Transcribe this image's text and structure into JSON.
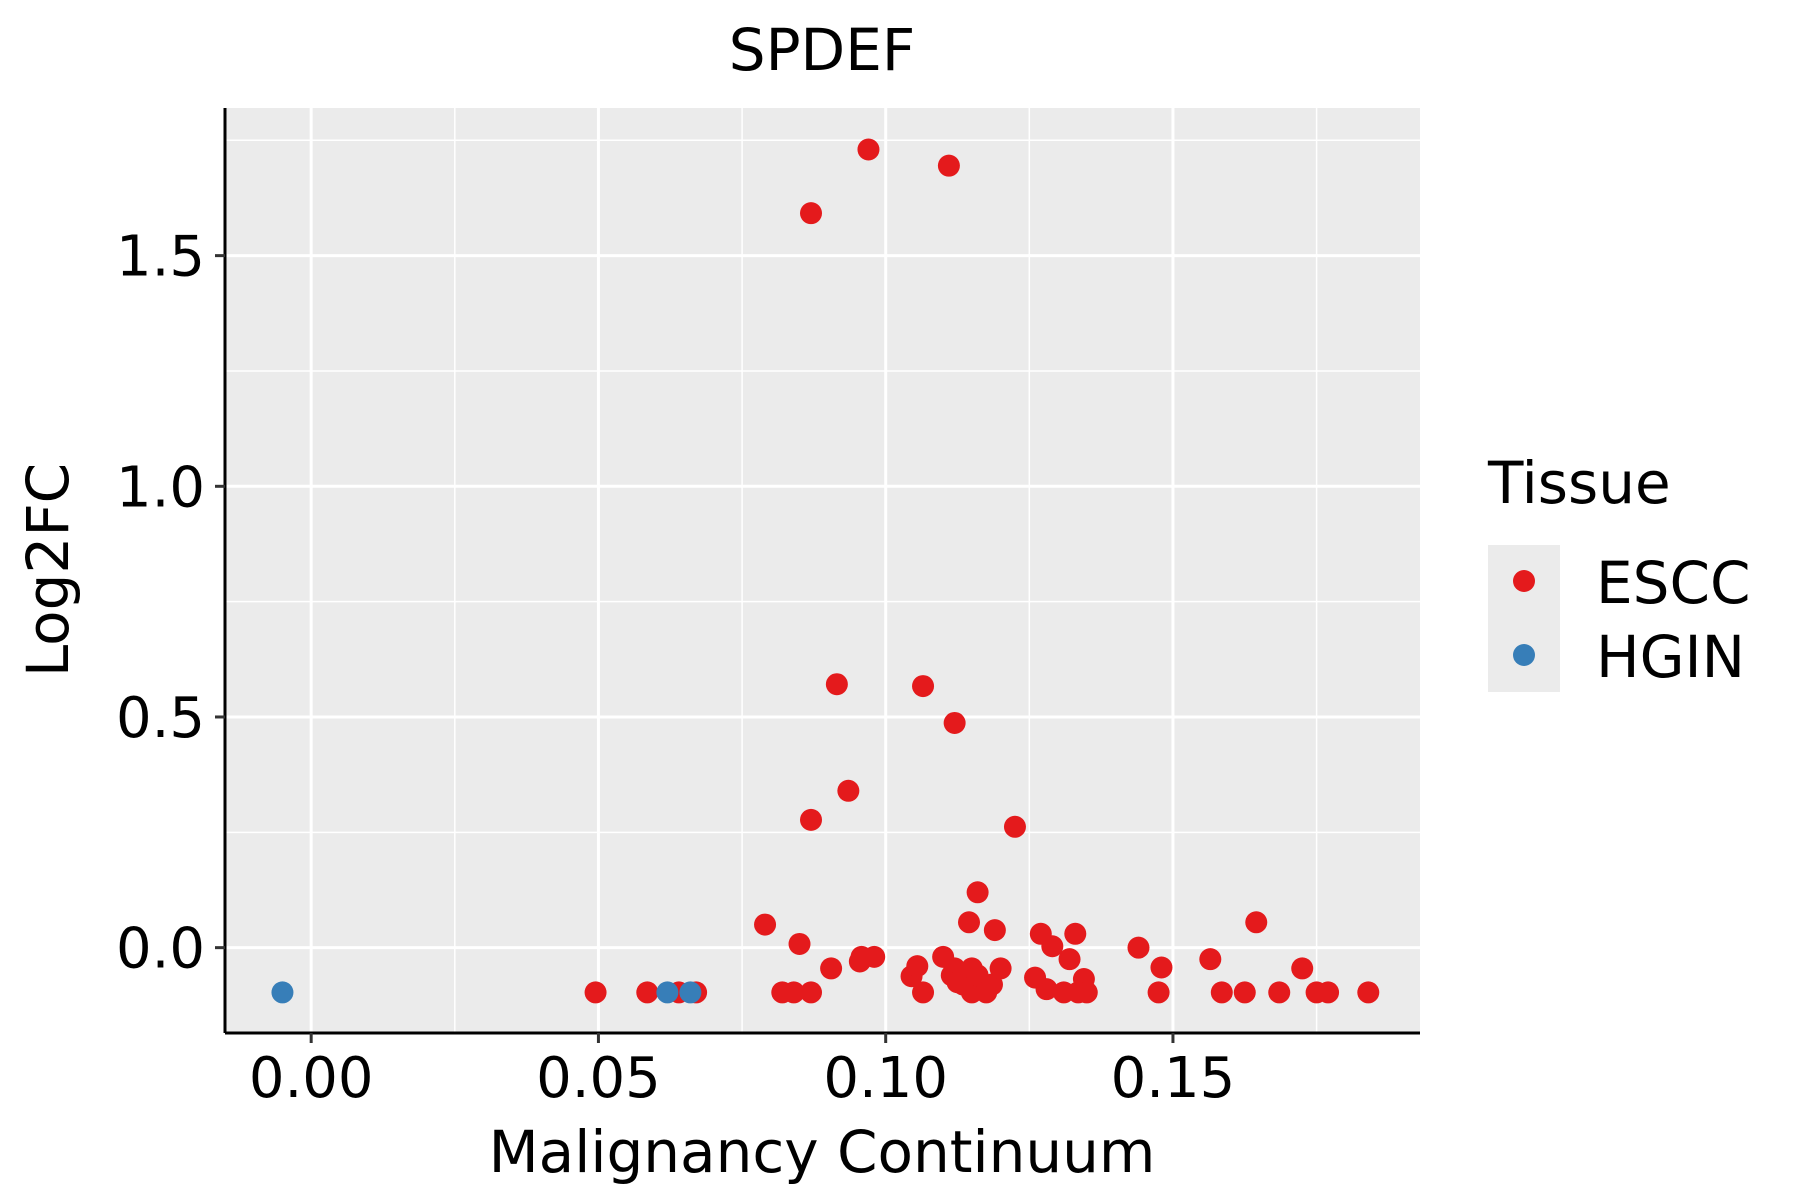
{
  "chart_data": {
    "type": "scatter",
    "title": "SPDEF",
    "xlabel": "Malignancy Continuum",
    "ylabel": "Log2FC",
    "xlim": [
      -0.015,
      0.193
    ],
    "ylim": [
      -0.185,
      1.82
    ],
    "x_ticks": [
      0.0,
      0.05,
      0.1,
      0.15
    ],
    "x_tick_labels": [
      "0.00",
      "0.05",
      "0.10",
      "0.15"
    ],
    "y_ticks": [
      0.0,
      0.5,
      1.0,
      1.5
    ],
    "y_tick_labels": [
      "0.0",
      "0.5",
      "1.0",
      "1.5"
    ],
    "grid": true,
    "panel_background": "#EBEBEB",
    "legend": {
      "title": "Tissue",
      "position": "right",
      "entries": [
        {
          "label": "ESCC",
          "color": "#E41A1C"
        },
        {
          "label": "HGIN",
          "color": "#377EB8"
        }
      ]
    },
    "series": [
      {
        "name": "ESCC",
        "color": "#E41A1C",
        "points": [
          [
            0.0495,
            -0.097
          ],
          [
            0.0585,
            -0.097
          ],
          [
            0.064,
            -0.097
          ],
          [
            0.067,
            -0.097
          ],
          [
            0.079,
            0.05
          ],
          [
            0.082,
            -0.097
          ],
          [
            0.084,
            -0.097
          ],
          [
            0.085,
            0.008
          ],
          [
            0.087,
            -0.097
          ],
          [
            0.087,
            0.277
          ],
          [
            0.087,
            1.592
          ],
          [
            0.0905,
            -0.045
          ],
          [
            0.0915,
            0.571
          ],
          [
            0.0935,
            0.34
          ],
          [
            0.0955,
            -0.03
          ],
          [
            0.0958,
            -0.02
          ],
          [
            0.097,
            1.73
          ],
          [
            0.098,
            -0.02
          ],
          [
            0.1045,
            -0.062
          ],
          [
            0.1055,
            -0.04
          ],
          [
            0.1065,
            -0.097
          ],
          [
            0.1065,
            0.567
          ],
          [
            0.11,
            -0.02
          ],
          [
            0.111,
            1.695
          ],
          [
            0.1115,
            -0.06
          ],
          [
            0.112,
            -0.045
          ],
          [
            0.112,
            0.487
          ],
          [
            0.1125,
            -0.075
          ],
          [
            0.1135,
            -0.08
          ],
          [
            0.1145,
            0.055
          ],
          [
            0.115,
            -0.097
          ],
          [
            0.115,
            -0.045
          ],
          [
            0.116,
            0.12
          ],
          [
            0.116,
            -0.06
          ],
          [
            0.1175,
            -0.097
          ],
          [
            0.1185,
            -0.08
          ],
          [
            0.119,
            0.038
          ],
          [
            0.12,
            -0.045
          ],
          [
            0.1225,
            0.262
          ],
          [
            0.126,
            -0.065
          ],
          [
            0.127,
            0.03
          ],
          [
            0.128,
            -0.09
          ],
          [
            0.129,
            0.003
          ],
          [
            0.131,
            -0.097
          ],
          [
            0.132,
            -0.025
          ],
          [
            0.133,
            0.03
          ],
          [
            0.1335,
            -0.097
          ],
          [
            0.1345,
            -0.068
          ],
          [
            0.135,
            -0.097
          ],
          [
            0.144,
            0.0
          ],
          [
            0.1475,
            -0.097
          ],
          [
            0.148,
            -0.043
          ],
          [
            0.1565,
            -0.025
          ],
          [
            0.1585,
            -0.097
          ],
          [
            0.1625,
            -0.097
          ],
          [
            0.1645,
            0.055
          ],
          [
            0.1685,
            -0.097
          ],
          [
            0.1725,
            -0.045
          ],
          [
            0.175,
            -0.097
          ],
          [
            0.177,
            -0.097
          ],
          [
            0.184,
            -0.097
          ]
        ]
      },
      {
        "name": "HGIN",
        "color": "#377EB8",
        "points": [
          [
            -0.005,
            -0.097
          ],
          [
            0.062,
            -0.097
          ],
          [
            0.066,
            -0.097
          ]
        ]
      }
    ]
  }
}
